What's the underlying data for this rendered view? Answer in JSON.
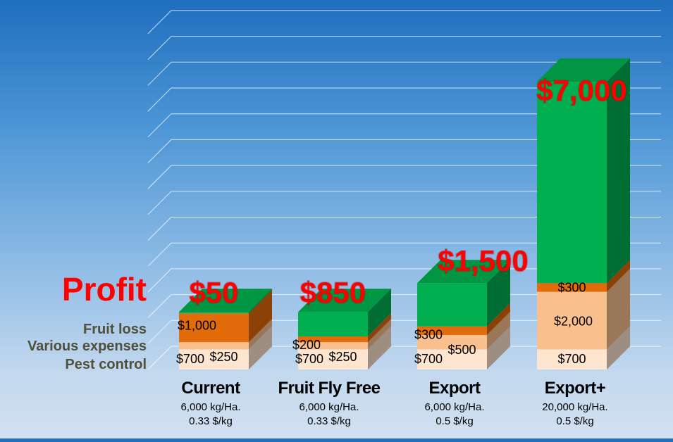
{
  "chart_data": {
    "type": "bar",
    "stacked": true,
    "three_d": true,
    "grid": true,
    "categories": [
      "Current",
      "Fruit Fly Free",
      "Export",
      "Export+"
    ],
    "category_details": [
      [
        "6,000 kg/Ha.",
        "0.33 $/kg"
      ],
      [
        "6,000 kg/Ha.",
        "0.33 $/kg"
      ],
      [
        "6,000 kg/Ha.",
        "0.5 $/kg"
      ],
      [
        "20,000 kg/Ha.",
        "0.5 $/kg"
      ]
    ],
    "series": [
      {
        "name": "Pest control",
        "values": [
          700,
          700,
          700,
          700
        ],
        "labels": [
          "$700",
          "$700",
          "$700",
          "$700"
        ]
      },
      {
        "name": "Various expenses",
        "values": [
          250,
          250,
          500,
          2000
        ],
        "labels": [
          "$250",
          "$250",
          "$500",
          "$2,000"
        ]
      },
      {
        "name": "Fruit loss",
        "values": [
          1000,
          200,
          300,
          300
        ],
        "labels": [
          "$1,000",
          "$200",
          "$300",
          "$300"
        ]
      },
      {
        "name": "Profit",
        "values": [
          50,
          850,
          1500,
          7000
        ],
        "labels": [
          "$50",
          "$850",
          "$1,500",
          "$7,000"
        ]
      }
    ],
    "series_colors": [
      "#fde5d0",
      "#f9c08e",
      "#e26b0a",
      "#00b050"
    ],
    "profit_label_color": "#ff0000",
    "legend_label_color": "#4f4f3a"
  }
}
